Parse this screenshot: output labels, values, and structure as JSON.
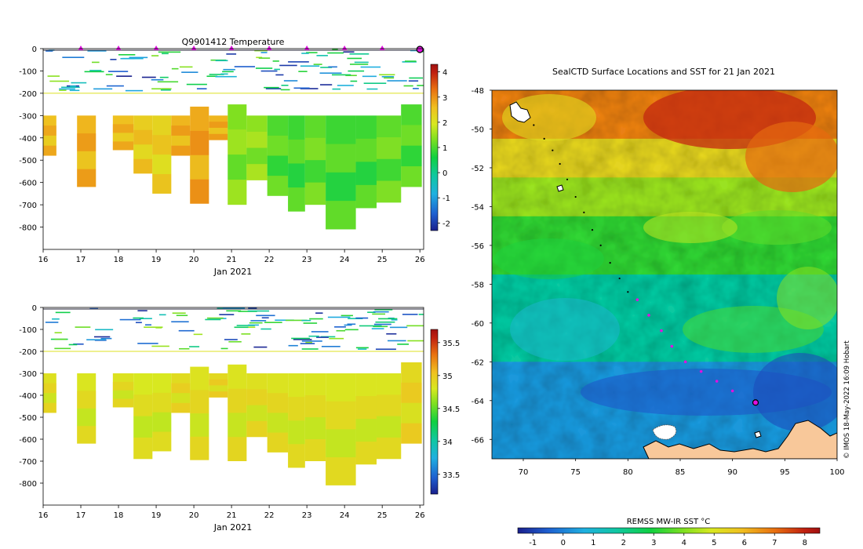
{
  "chart_data": [
    {
      "id": "temperature",
      "type": "heatmap",
      "title": "Q9901412  Temperature",
      "xlabel": "Jan 2021",
      "ylabel": "",
      "x_ticks": [
        "16",
        "17",
        "18",
        "19",
        "20",
        "21",
        "22",
        "23",
        "24",
        "25",
        "26"
      ],
      "y_ticks": [
        "0",
        "-100",
        "-200",
        "-300",
        "-400",
        "-500",
        "-600",
        "-700",
        "-800"
      ],
      "xlim": [
        16,
        26.1
      ],
      "ylim": [
        -900,
        0
      ],
      "surface_markers_days": [
        17.0,
        18.0,
        19.0,
        20.0,
        21.0,
        22.0,
        23.0,
        24.0,
        25.0
      ],
      "colorbar": {
        "ticks": [
          "4",
          "3",
          "2",
          "1",
          "0",
          "-1",
          "-2"
        ],
        "range": [
          -2.3,
          4.3
        ],
        "stops": [
          "#1a1f8c",
          "#1e5fd0",
          "#1fb0e0",
          "#10c8a0",
          "#10d040",
          "#80e020",
          "#d8e820",
          "#f0c020",
          "#e87010",
          "#c02010",
          "#a01010"
        ]
      },
      "profiles": [
        {
          "x0": 16.0,
          "x1": 16.35,
          "top": -300,
          "bottom": -480,
          "value": 2.3
        },
        {
          "x0": 16.9,
          "x1": 17.4,
          "top": -300,
          "bottom": -620,
          "value": 2.4
        },
        {
          "x0": 17.85,
          "x1": 18.4,
          "top": -300,
          "bottom": -455,
          "value": 2.3
        },
        {
          "x0": 18.4,
          "x1": 18.9,
          "top": -300,
          "bottom": -560,
          "value": 2.1
        },
        {
          "x0": 18.9,
          "x1": 19.4,
          "top": -300,
          "bottom": -650,
          "value": 2.0
        },
        {
          "x0": 19.4,
          "x1": 19.9,
          "top": -300,
          "bottom": -480,
          "value": 2.4
        },
        {
          "x0": 19.9,
          "x1": 20.4,
          "top": -260,
          "bottom": -695,
          "value": 2.5
        },
        {
          "x0": 20.4,
          "x1": 20.9,
          "top": -300,
          "bottom": -410,
          "value": 2.4
        },
        {
          "x0": 20.9,
          "x1": 21.4,
          "top": -250,
          "bottom": -700,
          "value": 1.0
        },
        {
          "x0": 21.4,
          "x1": 21.95,
          "top": -300,
          "bottom": -590,
          "value": 1.1
        },
        {
          "x0": 21.95,
          "x1": 22.5,
          "top": -300,
          "bottom": -660,
          "value": 0.7
        },
        {
          "x0": 22.5,
          "x1": 22.95,
          "top": -300,
          "bottom": -730,
          "value": 0.6
        },
        {
          "x0": 22.95,
          "x1": 23.5,
          "top": -300,
          "bottom": -700,
          "value": 0.8
        },
        {
          "x0": 23.5,
          "x1": 24.3,
          "top": -300,
          "bottom": -810,
          "value": 0.6
        },
        {
          "x0": 24.3,
          "x1": 24.85,
          "top": -300,
          "bottom": -715,
          "value": 0.6
        },
        {
          "x0": 24.85,
          "x1": 25.5,
          "top": -300,
          "bottom": -690,
          "value": 0.8
        },
        {
          "x0": 25.5,
          "x1": 26.05,
          "top": -250,
          "bottom": -620,
          "value": 0.7
        }
      ]
    },
    {
      "id": "salinity",
      "type": "heatmap",
      "title": "",
      "xlabel": "Jan 2021",
      "ylabel": "",
      "x_ticks": [
        "16",
        "17",
        "18",
        "19",
        "20",
        "21",
        "22",
        "23",
        "24",
        "25",
        "26"
      ],
      "y_ticks": [
        "0",
        "-100",
        "-200",
        "-300",
        "-400",
        "-500",
        "-600",
        "-700",
        "-800"
      ],
      "xlim": [
        16,
        26.1
      ],
      "ylim": [
        -900,
        0
      ],
      "colorbar": {
        "ticks": [
          "35.5",
          "35",
          "34.5",
          "34",
          "33.5"
        ],
        "range": [
          33.2,
          35.7
        ],
        "stops": [
          "#1a1f8c",
          "#1e5fd0",
          "#1fb0e0",
          "#10c8a0",
          "#10d040",
          "#80e020",
          "#d8e820",
          "#f0c020",
          "#e87010",
          "#c02010",
          "#a01010"
        ]
      },
      "profiles": [
        {
          "x0": 16.0,
          "x1": 16.35,
          "top": -300,
          "bottom": -480,
          "value": 34.75
        },
        {
          "x0": 16.9,
          "x1": 17.4,
          "top": -300,
          "bottom": -620,
          "value": 34.72
        },
        {
          "x0": 17.85,
          "x1": 18.4,
          "top": -300,
          "bottom": -455,
          "value": 34.74
        },
        {
          "x0": 18.4,
          "x1": 18.9,
          "top": -300,
          "bottom": -690,
          "value": 34.7
        },
        {
          "x0": 18.9,
          "x1": 19.4,
          "top": -300,
          "bottom": -655,
          "value": 34.7
        },
        {
          "x0": 19.4,
          "x1": 19.9,
          "top": -300,
          "bottom": -480,
          "value": 34.78
        },
        {
          "x0": 19.9,
          "x1": 20.4,
          "top": -270,
          "bottom": -695,
          "value": 34.74
        },
        {
          "x0": 20.4,
          "x1": 20.9,
          "top": -300,
          "bottom": -410,
          "value": 34.8
        },
        {
          "x0": 20.9,
          "x1": 21.4,
          "top": -260,
          "bottom": -700,
          "value": 34.73
        },
        {
          "x0": 21.4,
          "x1": 21.95,
          "top": -300,
          "bottom": -590,
          "value": 34.75
        },
        {
          "x0": 21.95,
          "x1": 22.5,
          "top": -300,
          "bottom": -660,
          "value": 34.73
        },
        {
          "x0": 22.5,
          "x1": 22.95,
          "top": -300,
          "bottom": -730,
          "value": 34.72
        },
        {
          "x0": 22.95,
          "x1": 23.5,
          "top": -300,
          "bottom": -700,
          "value": 34.72
        },
        {
          "x0": 23.5,
          "x1": 24.3,
          "top": -300,
          "bottom": -810,
          "value": 34.71
        },
        {
          "x0": 24.3,
          "x1": 24.85,
          "top": -300,
          "bottom": -715,
          "value": 34.72
        },
        {
          "x0": 24.85,
          "x1": 25.5,
          "top": -300,
          "bottom": -690,
          "value": 34.72
        },
        {
          "x0": 25.5,
          "x1": 26.05,
          "top": -250,
          "bottom": -620,
          "value": 34.8
        }
      ]
    },
    {
      "id": "sst_map",
      "type": "heatmap",
      "title": "SealCTD Surface Locations and SST for 21 Jan 2021",
      "xlabel": "",
      "ylabel": "",
      "x_ticks": [
        "70",
        "75",
        "80",
        "85",
        "90",
        "95",
        "100"
      ],
      "y_ticks": [
        "-48",
        "-50",
        "-52",
        "-54",
        "-56",
        "-58",
        "-60",
        "-62",
        "-64",
        "-66"
      ],
      "xlim": [
        67,
        100
      ],
      "ylim": [
        -67,
        -48
      ],
      "colorbar": {
        "label": "REMSS MW-IR SST °C",
        "ticks": [
          "-1",
          "0",
          "1",
          "2",
          "3",
          "4",
          "5",
          "6",
          "7",
          "8"
        ],
        "range": [
          -1.5,
          8.5
        ],
        "stops": [
          "#1a1f8c",
          "#1e5fd0",
          "#1fb0e0",
          "#10c8a0",
          "#10d040",
          "#80e020",
          "#d8e820",
          "#f0c020",
          "#e87010",
          "#c02010",
          "#a01010"
        ]
      },
      "sst_bands": [
        {
          "lat_top": -48,
          "lat_bottom": -50.5,
          "value": 6.3
        },
        {
          "lat_top": -50.5,
          "lat_bottom": -52.5,
          "value": 5.0
        },
        {
          "lat_top": -52.5,
          "lat_bottom": -54.5,
          "value": 3.8
        },
        {
          "lat_top": -54.5,
          "lat_bottom": -57.5,
          "value": 2.8
        },
        {
          "lat_top": -57.5,
          "lat_bottom": -62,
          "value": 1.5
        },
        {
          "lat_top": -62,
          "lat_bottom": -67,
          "value": 0.2
        }
      ],
      "track": [
        {
          "lon": 71.0,
          "lat": -49.8,
          "type": "older"
        },
        {
          "lon": 72.0,
          "lat": -50.5,
          "type": "older"
        },
        {
          "lon": 72.8,
          "lat": -51.1,
          "type": "older"
        },
        {
          "lon": 73.5,
          "lat": -51.8,
          "type": "older"
        },
        {
          "lon": 74.2,
          "lat": -52.6,
          "type": "older"
        },
        {
          "lon": 75.0,
          "lat": -53.5,
          "type": "older"
        },
        {
          "lon": 75.8,
          "lat": -54.3,
          "type": "older"
        },
        {
          "lon": 76.6,
          "lat": -55.2,
          "type": "older"
        },
        {
          "lon": 77.4,
          "lat": -56.0,
          "type": "older"
        },
        {
          "lon": 78.3,
          "lat": -56.9,
          "type": "older"
        },
        {
          "lon": 79.2,
          "lat": -57.7,
          "type": "older"
        },
        {
          "lon": 80.0,
          "lat": -58.4,
          "type": "older"
        },
        {
          "lon": 80.9,
          "lat": -58.8,
          "type": "recent"
        },
        {
          "lon": 82.0,
          "lat": -59.6,
          "type": "recent"
        },
        {
          "lon": 83.2,
          "lat": -60.4,
          "type": "recent"
        },
        {
          "lon": 84.2,
          "lat": -61.2,
          "type": "recent"
        },
        {
          "lon": 85.5,
          "lat": -62.0,
          "type": "recent"
        },
        {
          "lon": 87.0,
          "lat": -62.5,
          "type": "recent"
        },
        {
          "lon": 88.5,
          "lat": -63.0,
          "type": "recent"
        },
        {
          "lon": 90.0,
          "lat": -63.5,
          "type": "recent"
        },
        {
          "lon": 92.2,
          "lat": -64.1,
          "type": "latest"
        }
      ],
      "credit": "© IMOS 18-May-2022 16:09 Hobart"
    }
  ]
}
